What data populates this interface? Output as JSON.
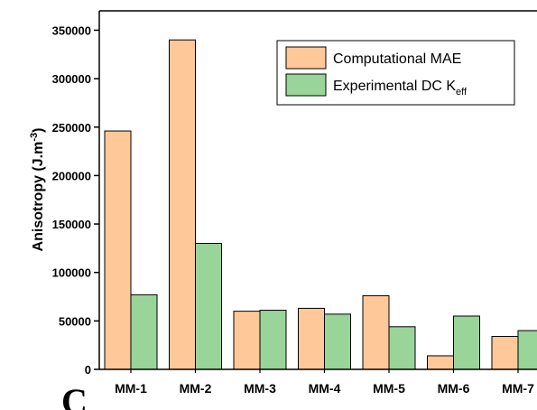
{
  "panel_label": "C",
  "chart_data": {
    "type": "bar",
    "categories": [
      "MM-1",
      "MM-2",
      "MM-3",
      "MM-4",
      "MM-5",
      "MM-6",
      "MM-7"
    ],
    "series": [
      {
        "name": "Computational MAE",
        "values": [
          246000,
          340000,
          60000,
          63000,
          76000,
          14000,
          34000
        ],
        "color": "#FFC899"
      },
      {
        "name": "Experimental DC K",
        "name_subscript": "eff",
        "values": [
          77000,
          130000,
          61000,
          57000,
          44000,
          55000,
          40000
        ],
        "color": "#99D499"
      }
    ],
    "ylabel": "Anisotropy (J.m",
    "ylabel_superscript": "-3",
    "ylabel_suffix": ")",
    "ylim": [
      0,
      370000
    ],
    "yticks": [
      0,
      50000,
      100000,
      150000,
      200000,
      250000,
      300000,
      350000
    ],
    "legend_position": "top-right",
    "grid": false
  }
}
